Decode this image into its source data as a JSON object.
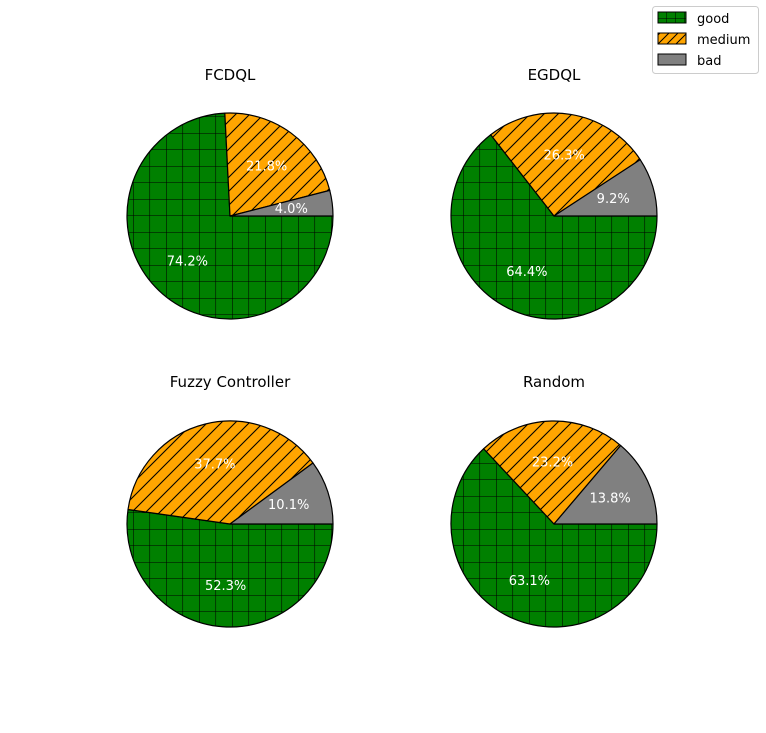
{
  "chart_data": [
    {
      "type": "pie",
      "title": "FCDQL",
      "categories": [
        "good",
        "medium",
        "bad"
      ],
      "values": [
        74.2,
        21.8,
        4.0
      ],
      "labels": [
        "74.2%",
        "21.8%",
        "4.0%"
      ]
    },
    {
      "type": "pie",
      "title": "EGDQL",
      "categories": [
        "good",
        "medium",
        "bad"
      ],
      "values": [
        64.4,
        26.3,
        9.2
      ],
      "labels": [
        "64.4%",
        "26.3%",
        "9.2%"
      ]
    },
    {
      "type": "pie",
      "title": "Fuzzy Controller",
      "categories": [
        "good",
        "medium",
        "bad"
      ],
      "values": [
        52.3,
        37.7,
        10.1
      ],
      "labels": [
        "52.3%",
        "37.7%",
        "10.1%"
      ]
    },
    {
      "type": "pie",
      "title": "Random",
      "categories": [
        "good",
        "medium",
        "bad"
      ],
      "values": [
        63.1,
        23.2,
        13.8
      ],
      "labels": [
        "63.1%",
        "23.2%",
        "13.8%"
      ]
    }
  ],
  "legend": {
    "placement": "top-right",
    "items": [
      {
        "label": "good",
        "color": "#008000",
        "hatch": "grid"
      },
      {
        "label": "medium",
        "color": "#FFA500",
        "hatch": "diagonal"
      },
      {
        "label": "bad",
        "color": "#808080",
        "hatch": "none"
      }
    ]
  },
  "start_angle": "clockwise from 3 o'clock"
}
